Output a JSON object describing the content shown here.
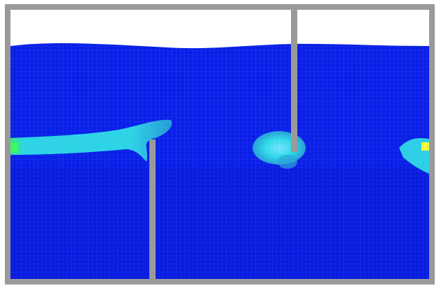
{
  "figure": {
    "colors": {
      "frame": "#9a9a9a",
      "background": "#ffffff",
      "fluid_blue": "#0a1fe6",
      "fluid_dark_blue": "#0714c8",
      "mesh_line": "#3c55ff",
      "high_velocity_cyan": "#32e6e6",
      "mid_velocity_teal": "#2aa6d6",
      "peak_green": "#3cff5a",
      "peak_yellow": "#f0ff3c"
    },
    "visual_elements": [
      "outer-tank-frame",
      "fluid-domain",
      "free-surface",
      "upper-baffle",
      "lower-baffle",
      "inlet-jet",
      "vortex-blob",
      "outlet-jet",
      "mesh-grid"
    ]
  }
}
